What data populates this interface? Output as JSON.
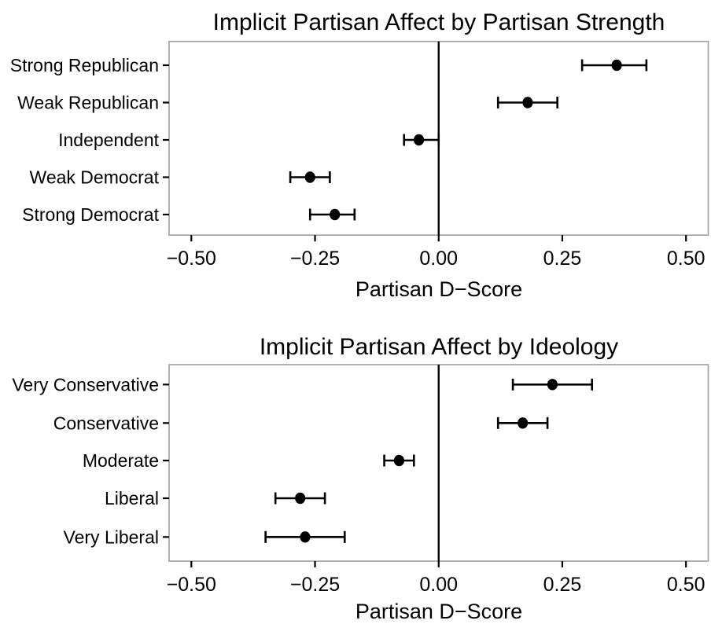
{
  "style": {
    "background_color": "#ffffff",
    "text_color": "#000000",
    "panel_border_color": "#9e9e9e",
    "panel_fill_color": "#ffffff",
    "point_color": "#000000",
    "error_bar_color": "#000000",
    "reference_line_color": "#000000"
  },
  "chart_data": [
    {
      "type": "scatter",
      "subtype": "dot-whisker",
      "title": "Implicit Partisan Affect by Partisan Strength",
      "xlabel": "Partisan D−Score",
      "ylabel": "",
      "xlim": [
        -0.545,
        0.545
      ],
      "x_ticks": [
        -0.5,
        -0.25,
        0,
        0.25,
        0.5
      ],
      "x_tick_labels": [
        "−0.50",
        "−0.25",
        "0.00",
        "0.25",
        "0.50"
      ],
      "grid": false,
      "legend": false,
      "reference_line_x": 0,
      "categories": [
        "Strong Republican",
        "Weak Republican",
        "Independent",
        "Weak Democrat",
        "Strong Democrat"
      ],
      "points": [
        {
          "label": "Strong Republican",
          "value": 0.36,
          "ci_low": 0.29,
          "ci_high": 0.42
        },
        {
          "label": "Weak Republican",
          "value": 0.18,
          "ci_low": 0.12,
          "ci_high": 0.24
        },
        {
          "label": "Independent",
          "value": -0.04,
          "ci_low": -0.07,
          "ci_high": 0.0
        },
        {
          "label": "Weak Democrat",
          "value": -0.26,
          "ci_low": -0.3,
          "ci_high": -0.22
        },
        {
          "label": "Strong Democrat",
          "value": -0.21,
          "ci_low": -0.26,
          "ci_high": -0.17
        }
      ]
    },
    {
      "type": "scatter",
      "subtype": "dot-whisker",
      "title": "Implicit Partisan Affect by Ideology",
      "xlabel": "Partisan D−Score",
      "ylabel": "",
      "xlim": [
        -0.545,
        0.545
      ],
      "x_ticks": [
        -0.5,
        -0.25,
        0,
        0.25,
        0.5
      ],
      "x_tick_labels": [
        "−0.50",
        "−0.25",
        "0.00",
        "0.25",
        "0.50"
      ],
      "grid": false,
      "legend": false,
      "reference_line_x": 0,
      "categories": [
        "Very Conservative",
        "Conservative",
        "Moderate",
        "Liberal",
        "Very Liberal"
      ],
      "points": [
        {
          "label": "Very Conservative",
          "value": 0.23,
          "ci_low": 0.15,
          "ci_high": 0.31
        },
        {
          "label": "Conservative",
          "value": 0.17,
          "ci_low": 0.12,
          "ci_high": 0.22
        },
        {
          "label": "Moderate",
          "value": -0.08,
          "ci_low": -0.11,
          "ci_high": -0.05
        },
        {
          "label": "Liberal",
          "value": -0.28,
          "ci_low": -0.33,
          "ci_high": -0.23
        },
        {
          "label": "Very Liberal",
          "value": -0.27,
          "ci_low": -0.35,
          "ci_high": -0.19
        }
      ]
    }
  ]
}
